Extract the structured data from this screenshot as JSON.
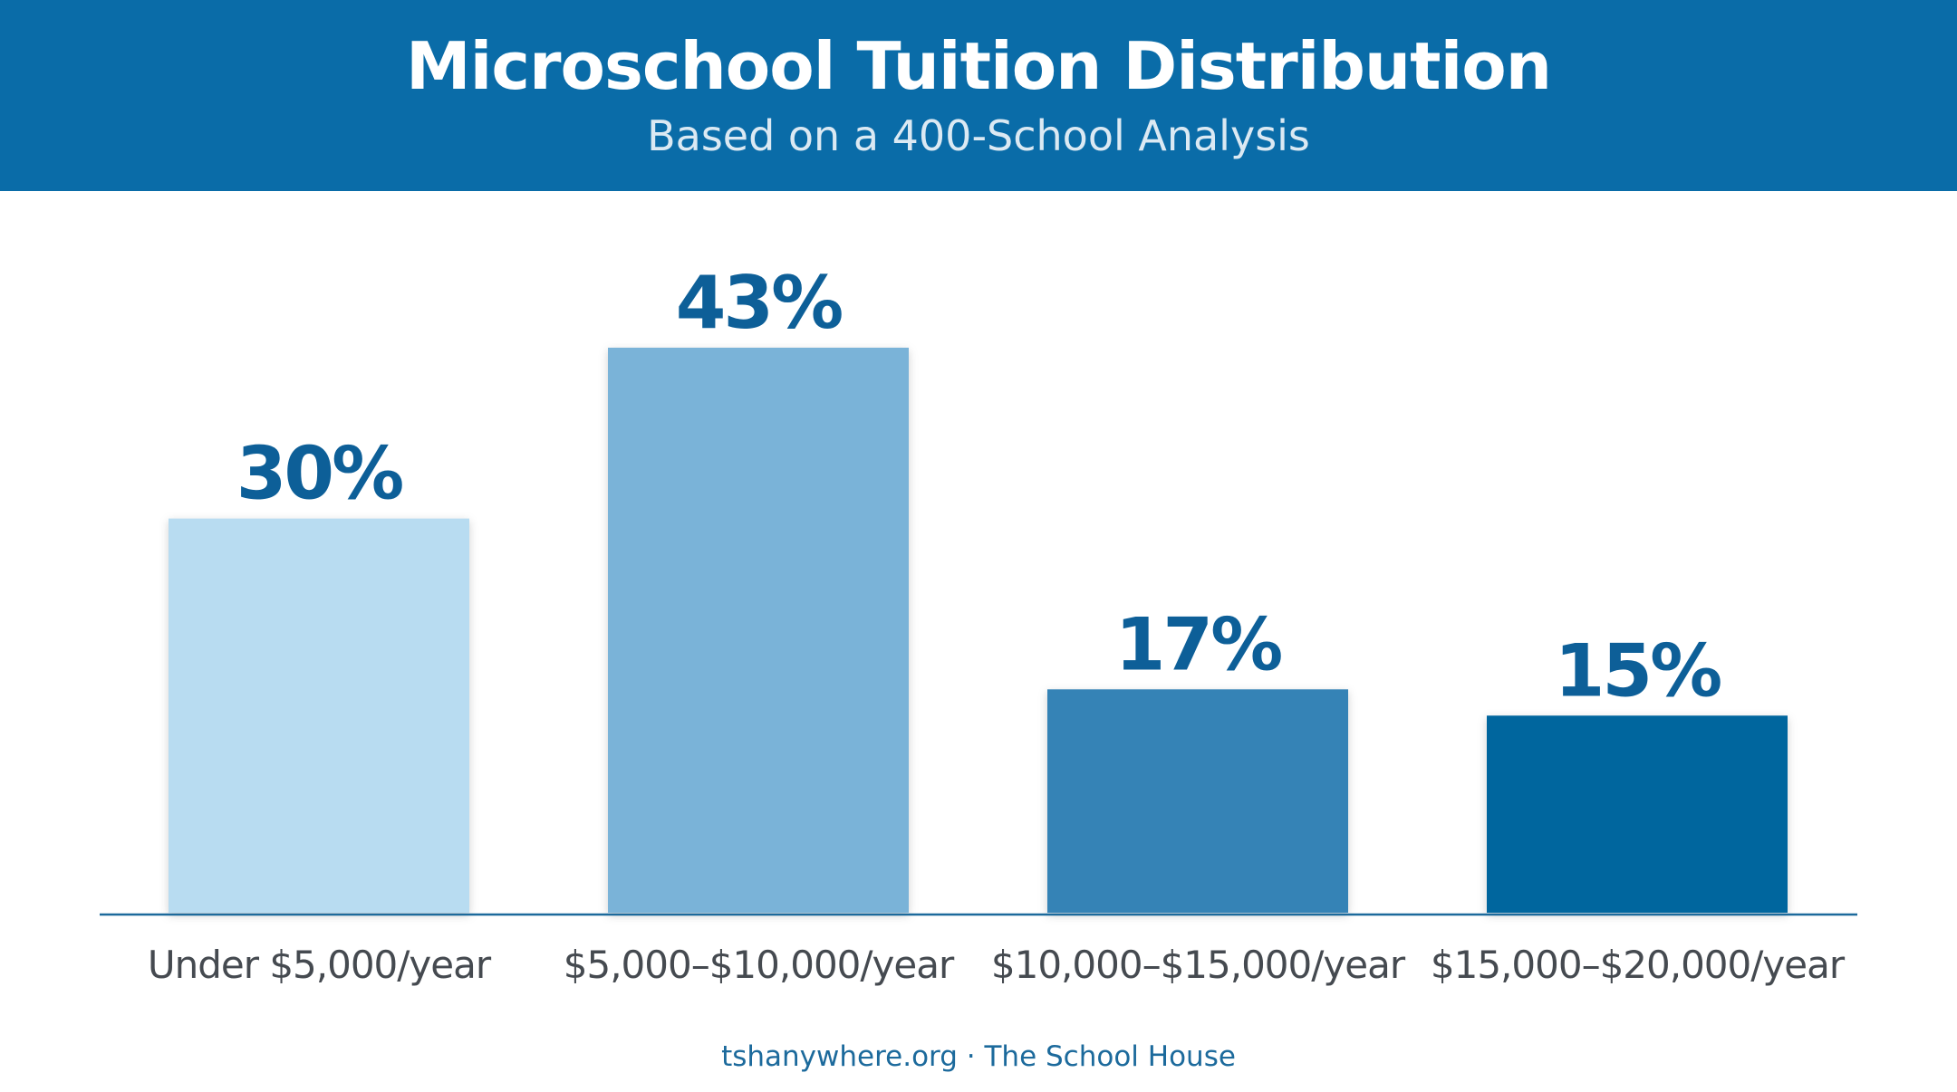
{
  "title": "Microschool Tuition Distribution",
  "subtitle": "Based on a 400-School Analysis",
  "footer": "tshanywhere.org · The School House",
  "colors": {
    "header_bg": "#0a6ca8",
    "title_text": "#ffffff",
    "subtitle_text": "#dbe9f3",
    "value_label": "#0d5f98",
    "category_label": "#454a50",
    "baseline": "#1c6a9c",
    "footer_text": "#1c6a9c"
  },
  "chart_data": {
    "type": "bar",
    "categories": [
      "Under $5,000/year",
      "$5,000–$10,000/year",
      "$10,000–$15,000/year",
      "$15,000–$20,000/year"
    ],
    "values": [
      30,
      43,
      17,
      15
    ],
    "value_labels": [
      "30%",
      "43%",
      "17%",
      "15%"
    ],
    "bar_colors": [
      "#b8dcf1",
      "#7ab3d8",
      "#3583b6",
      "#04669e"
    ],
    "title": "Microschool Tuition Distribution",
    "subtitle": "Based on a 400-School Analysis",
    "xlabel": "",
    "ylabel": "",
    "ylim": [
      0,
      43
    ],
    "grid": false,
    "legend": "none"
  }
}
